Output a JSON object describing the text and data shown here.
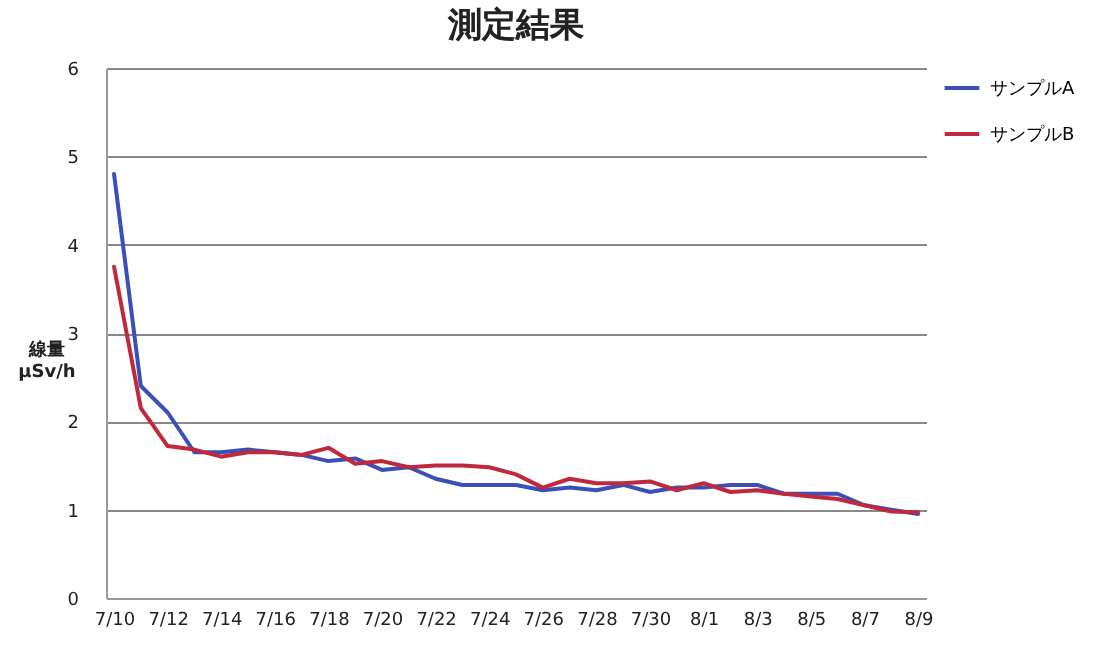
{
  "chart_data": {
    "type": "line",
    "title": "測定結果",
    "ylabel": "線量\nμSv/h",
    "categories": [
      "7/10",
      null,
      "7/12",
      null,
      "7/14",
      null,
      "7/16",
      null,
      "7/18",
      null,
      "7/20",
      null,
      "7/22",
      null,
      "7/24",
      null,
      "7/26",
      null,
      "7/28",
      null,
      "7/30",
      null,
      "8/1",
      null,
      "8/3",
      null,
      "8/5",
      null,
      "8/7",
      null,
      "8/9"
    ],
    "series": [
      {
        "name": "サンプルA",
        "color": "#3a4fb8",
        "values": [
          4.8,
          2.4,
          2.1,
          1.65,
          1.65,
          1.68,
          1.65,
          1.62,
          1.55,
          1.58,
          1.45,
          1.48,
          1.35,
          1.28,
          1.28,
          1.28,
          1.22,
          1.25,
          1.22,
          1.28,
          1.2,
          1.25,
          1.25,
          1.28,
          1.28,
          1.18,
          1.18,
          1.18,
          1.05,
          1.0,
          0.95
        ]
      },
      {
        "name": "サンプルB",
        "color": "#c0283c",
        "values": [
          3.75,
          2.15,
          1.72,
          1.68,
          1.6,
          1.65,
          1.65,
          1.62,
          1.7,
          1.52,
          1.55,
          1.48,
          1.5,
          1.5,
          1.48,
          1.4,
          1.25,
          1.35,
          1.3,
          1.3,
          1.32,
          1.22,
          1.3,
          1.2,
          1.22,
          1.18,
          1.15,
          1.12,
          1.05,
          0.98,
          0.97
        ]
      }
    ],
    "ylim": [
      0,
      6
    ],
    "yticks": [
      0,
      1,
      2,
      3,
      4,
      5,
      6
    ],
    "grid": "y",
    "legend": "right",
    "marker": "none",
    "line_style": "solid"
  }
}
